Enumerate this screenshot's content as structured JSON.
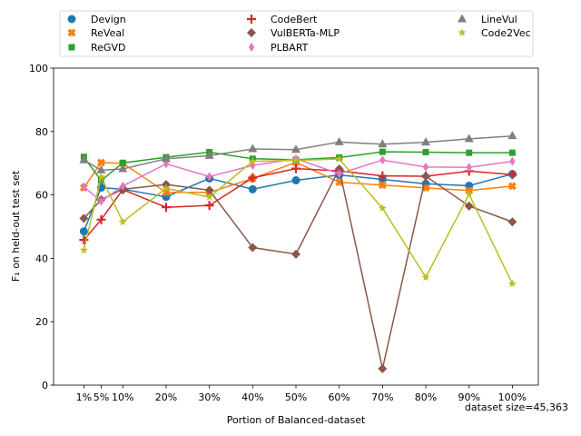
{
  "chart_data": {
    "type": "line",
    "xlabel": "Portion of Balanced-dataset",
    "ylabel": "F₁ on held-out test set",
    "ylim": [
      0,
      100
    ],
    "yticks": [
      0,
      20,
      40,
      60,
      80,
      100
    ],
    "grid": false,
    "legend_position": "top",
    "x_annotation": "dataset size=45,363",
    "categories": [
      "1%",
      "5%",
      "10%",
      "20%",
      "30%",
      "40%",
      "50%",
      "60%",
      "70%",
      "80%",
      "90%",
      "100%"
    ],
    "x_values": [
      1,
      5,
      10,
      20,
      30,
      40,
      50,
      60,
      70,
      80,
      90,
      100
    ],
    "series": [
      {
        "name": "Devign",
        "color": "#1f77b4",
        "marker": "circle",
        "values": [
          48.5,
          62.3,
          61.8,
          59.4,
          65.2,
          61.8,
          64.6,
          66.3,
          64.9,
          63.5,
          62.9,
          66.6
        ]
      },
      {
        "name": "ReVeal",
        "color": "#ff7f0e",
        "marker": "x-box",
        "values": [
          62.3,
          70.2,
          70.0,
          60.8,
          60.8,
          65.2,
          70.3,
          64.0,
          63.1,
          62.2,
          61.4,
          62.8
        ]
      },
      {
        "name": "ReGVD",
        "color": "#2ca02c",
        "marker": "square",
        "values": [
          72.0,
          64.5,
          70.1,
          71.9,
          73.5,
          71.4,
          71.1,
          71.8,
          73.6,
          73.5,
          73.3,
          73.3
        ]
      },
      {
        "name": "CodeBert",
        "color": "#d62728",
        "marker": "plus",
        "values": [
          45.8,
          52.2,
          61.7,
          56.1,
          56.7,
          65.4,
          68.3,
          67.6,
          66.0,
          65.9,
          67.5,
          66.4
        ]
      },
      {
        "name": "VulBERTa-MLP",
        "color": "#8c564b",
        "marker": "diamond",
        "values": [
          52.6,
          58.5,
          61.8,
          63.3,
          61.5,
          43.4,
          41.3,
          68.2,
          5.2,
          65.9,
          56.5,
          51.5
        ]
      },
      {
        "name": "PLBART",
        "color": "#e377c2",
        "marker": "thin-diamond",
        "values": [
          62.6,
          58.0,
          62.8,
          69.8,
          65.8,
          69.3,
          71.4,
          66.7,
          71.0,
          68.8,
          68.7,
          70.6
        ]
      },
      {
        "name": "LineVul",
        "color": "#7f7f7f",
        "marker": "triangle",
        "values": [
          71.0,
          67.8,
          68.2,
          71.4,
          72.4,
          74.5,
          74.3,
          76.7,
          76.0,
          76.6,
          77.7,
          78.6
        ]
      },
      {
        "name": "Code2Vec",
        "color": "#bcbd22",
        "marker": "star",
        "values": [
          42.6,
          65.7,
          51.5,
          62.1,
          59.3,
          70.6,
          70.9,
          71.3,
          55.8,
          34.0,
          60.2,
          32.0
        ]
      }
    ]
  }
}
